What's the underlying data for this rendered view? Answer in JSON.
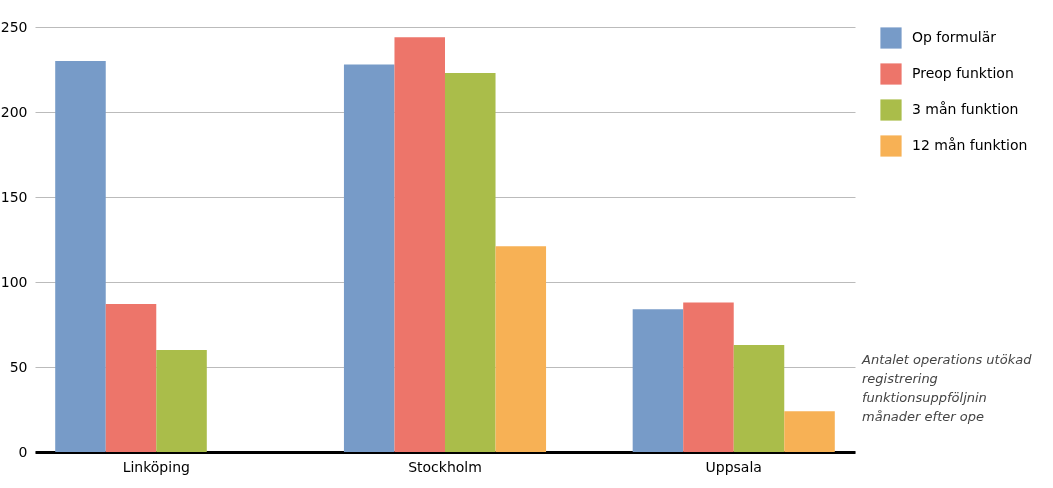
{
  "chart_data": {
    "type": "bar",
    "categories": [
      "Linköping",
      "Stockholm",
      "Uppsala"
    ],
    "series": [
      {
        "name": "Op formulär",
        "color": "#779bc8",
        "values": [
          230,
          228,
          84
        ]
      },
      {
        "name": "Preop funktion",
        "color": "#ed756a",
        "values": [
          87,
          244,
          88
        ]
      },
      {
        "name": "3 mån funktion",
        "color": "#aabd4a",
        "values": [
          60,
          223,
          63
        ]
      },
      {
        "name": "12 mån funktion",
        "color": "#f7b155",
        "values": [
          null,
          121,
          24
        ]
      }
    ],
    "ylim": [
      0,
      250
    ],
    "yticks": [
      0,
      50,
      100,
      150,
      200,
      250
    ],
    "grid": "y",
    "legend": "right",
    "annotations": [
      "Antalet operations utökad registrering funktionsuppföljnin månader efter ope"
    ]
  }
}
